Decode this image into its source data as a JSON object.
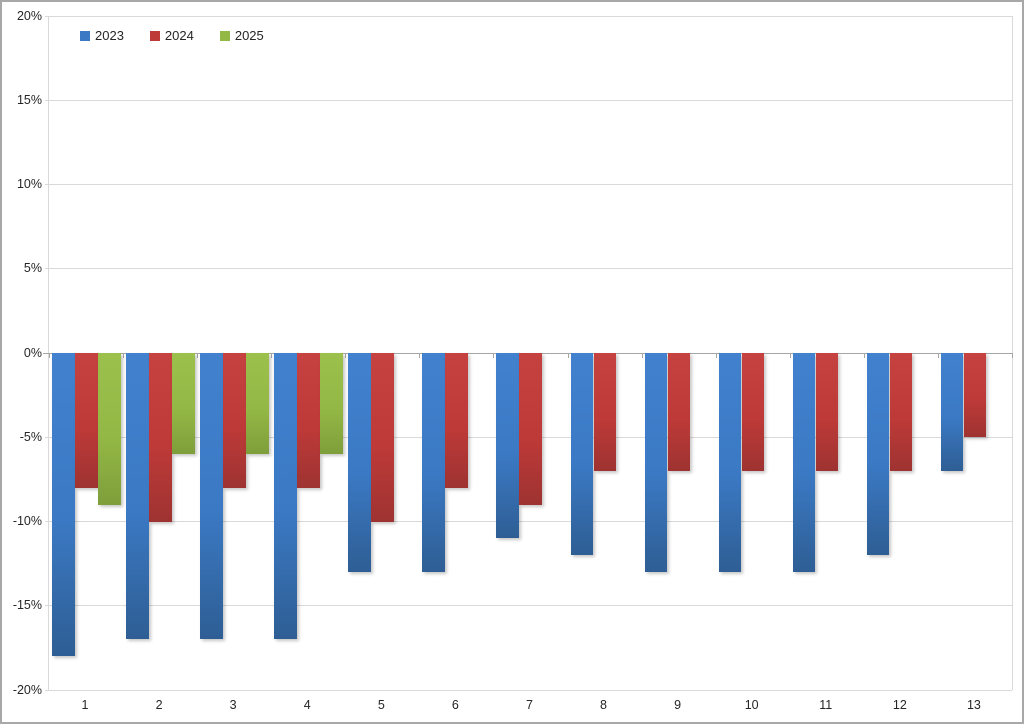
{
  "chart_data": {
    "type": "bar",
    "title": "",
    "categories": [
      "1",
      "2",
      "3",
      "4",
      "5",
      "6",
      "7",
      "8",
      "9",
      "10",
      "11",
      "12",
      "13"
    ],
    "series": [
      {
        "name": "2023",
        "color": "#3B79C4",
        "color_light": "#4181CE",
        "color_dark": "#2E5E94",
        "values": [
          -18,
          -17,
          -17,
          -17,
          -13,
          -13,
          -11,
          -12,
          -13,
          -13,
          -13,
          -12,
          -7
        ]
      },
      {
        "name": "2024",
        "color": "#BE3A38",
        "color_light": "#C54240",
        "color_dark": "#9E3331",
        "values": [
          -8,
          -10,
          -8,
          -8,
          -10,
          -8,
          -9,
          -7,
          -7,
          -7,
          -7,
          -7,
          -5
        ]
      },
      {
        "name": "2025",
        "color": "#94B845",
        "color_light": "#9CC04C",
        "color_dark": "#7E9E3B",
        "values": [
          -9,
          -6,
          -6,
          -6,
          null,
          null,
          null,
          null,
          null,
          null,
          null,
          null,
          null
        ]
      }
    ],
    "ylim": [
      -20,
      20
    ],
    "ytick_step": 5,
    "ytick_labels": [
      "20%",
      "15%",
      "10%",
      "5%",
      "0%",
      "-5%",
      "-10%",
      "-15%",
      "-20%"
    ],
    "xlabel": "",
    "ylabel": "",
    "grid": true,
    "legend_position": "top-left",
    "colors": {
      "gridline": "#D9D9D9",
      "zero_axis": "#A6A6A6",
      "text": "#262626",
      "background": "#FFFFFF",
      "frame_border": "#A8A8A8"
    }
  }
}
